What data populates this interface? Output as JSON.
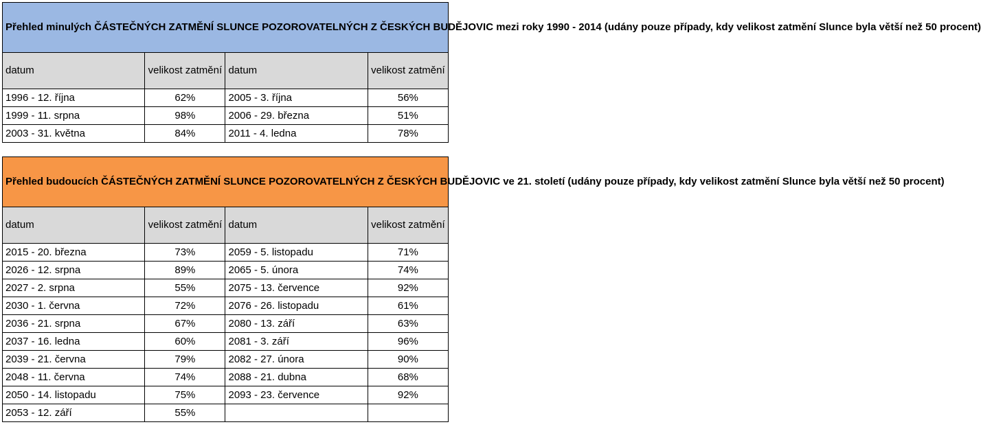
{
  "past": {
    "title": "Přehled minulých ČÁSTEČNÝCH ZATMĚNÍ SLUNCE POZOROVATELNÝCH Z ČESKÝCH BUDĚJOVIC mezi roky 1990 - 2014 (udány pouze případy, kdy velikost zatmění Slunce byla větší než 50 procent)",
    "header": {
      "date": "datum",
      "size": "velikost zatmění"
    },
    "rows": [
      [
        "1996 - 12. října",
        "62%",
        "2005 - 3. října",
        "56%"
      ],
      [
        "1999 - 11. srpna",
        "98%",
        "2006 - 29. března",
        "51%"
      ],
      [
        "2003 - 31. května",
        "84%",
        "2011 - 4. ledna",
        "78%"
      ]
    ],
    "color": "#9bb8e3"
  },
  "future": {
    "title": "Přehled budoucích ČÁSTEČNÝCH ZATMĚNÍ SLUNCE POZOROVATELNÝCH Z ČESKÝCH BUDĚJOVIC ve 21. století (udány pouze případy, kdy velikost zatmění Slunce byla větší než 50 procent)",
    "header": {
      "date": "datum",
      "size": "velikost zatmění"
    },
    "rows": [
      [
        "2015 - 20. března",
        "73%",
        "2059 - 5. listopadu",
        "71%"
      ],
      [
        "2026 - 12. srpna",
        "89%",
        "2065 - 5. února",
        "74%"
      ],
      [
        "2027 - 2. srpna",
        "55%",
        "2075 - 13. července",
        "92%"
      ],
      [
        "2030 - 1. června",
        "72%",
        "2076 - 26. listopadu",
        "61%"
      ],
      [
        "2036 - 21. srpna",
        "67%",
        "2080 - 13. září",
        "63%"
      ],
      [
        "2037 - 16. ledna",
        "60%",
        "2081 - 3. září",
        "96%"
      ],
      [
        "2039 - 21. června",
        "79%",
        "2082 - 27. února",
        "90%"
      ],
      [
        "2048 - 11. června",
        "74%",
        "2088 - 21. dubna",
        "68%"
      ],
      [
        "2050 - 14. listopadu",
        "75%",
        "2093 - 23. července",
        "92%"
      ],
      [
        "2053 - 12. září",
        "55%",
        "",
        ""
      ]
    ],
    "color": "#f79646"
  }
}
